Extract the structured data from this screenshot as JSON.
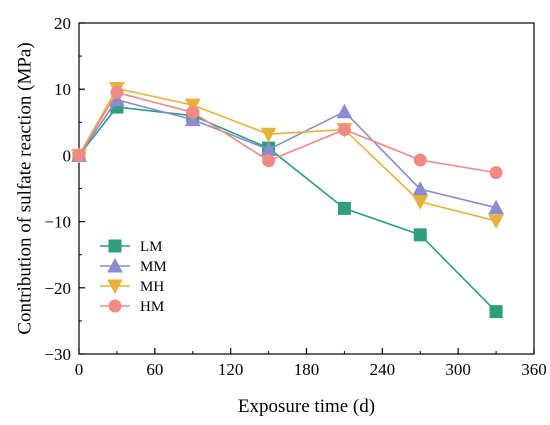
{
  "chart_data": {
    "type": "line",
    "xlabel": "Exposure time (d)",
    "ylabel": "Contribution of sulfate reaction (MPa)",
    "xlim": [
      0,
      360
    ],
    "ylim": [
      -30,
      20
    ],
    "xticks": [
      0,
      60,
      120,
      180,
      240,
      300,
      360
    ],
    "yticks": [
      -30,
      -20,
      -10,
      0,
      10,
      20
    ],
    "xtick_labels": [
      "0",
      "60",
      "120",
      "180",
      "240",
      "300",
      "360"
    ],
    "ytick_labels": [
      "−30",
      "−20",
      "−10",
      "0",
      "10",
      "20"
    ],
    "grid": false,
    "legend_position": "lower-left",
    "x": [
      0,
      30,
      90,
      150,
      210,
      270,
      330
    ],
    "series": [
      {
        "name": "LM",
        "marker": "square",
        "color": "#2e9e7e",
        "values": [
          0,
          7.3,
          6.0,
          1.1,
          -8.0,
          -12.0,
          -23.6
        ]
      },
      {
        "name": "MM",
        "marker": "triangle-up",
        "color": "#8b8bd0",
        "values": [
          0,
          8.4,
          5.4,
          0.9,
          6.6,
          -5.1,
          -7.9
        ]
      },
      {
        "name": "MH",
        "marker": "triangle-down",
        "color": "#e8b23a",
        "values": [
          0,
          10.1,
          7.6,
          3.2,
          3.9,
          -7.0,
          -9.9
        ]
      },
      {
        "name": "HM",
        "marker": "circle",
        "color": "#f08a82",
        "values": [
          0,
          9.5,
          6.5,
          -0.8,
          3.9,
          -0.7,
          -2.6
        ]
      }
    ]
  }
}
